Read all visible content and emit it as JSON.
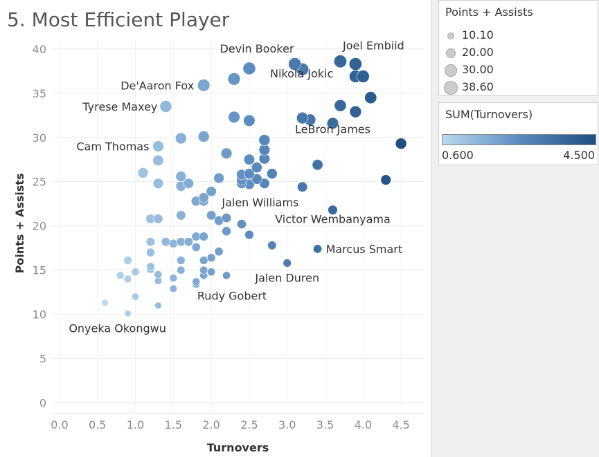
{
  "title": "5. Most Efficient Player",
  "chart_data": {
    "type": "scatter",
    "xlabel": "Turnovers",
    "ylabel": "Points + Assists",
    "xlim": [
      -0.1,
      4.8
    ],
    "ylim": [
      -1.2,
      41
    ],
    "xticks": [
      "0.0",
      "0.5",
      "1.0",
      "1.5",
      "2.0",
      "2.5",
      "3.0",
      "3.5",
      "4.0",
      "4.5"
    ],
    "yticks": [
      "0",
      "5",
      "10",
      "15",
      "20",
      "25",
      "30",
      "35",
      "40"
    ],
    "grid": true,
    "size_encoding": "Points + Assists",
    "color_encoding": "SUM(Turnovers)",
    "points": [
      [
        0.6,
        11.3
      ],
      [
        0.8,
        14.4
      ],
      [
        0.9,
        16.1
      ],
      [
        0.9,
        14.0
      ],
      [
        0.9,
        10.1
      ],
      [
        1.0,
        14.8
      ],
      [
        1.0,
        12.0
      ],
      [
        1.1,
        26.0
      ],
      [
        1.2,
        20.8
      ],
      [
        1.2,
        18.2
      ],
      [
        1.2,
        17.0
      ],
      [
        1.2,
        15.4
      ],
      [
        1.2,
        15.1
      ],
      [
        1.3,
        29.0
      ],
      [
        1.3,
        27.4
      ],
      [
        1.3,
        24.8
      ],
      [
        1.3,
        20.8
      ],
      [
        1.3,
        14.5
      ],
      [
        1.3,
        13.8
      ],
      [
        1.3,
        11.0
      ],
      [
        1.4,
        33.5
      ],
      [
        1.4,
        18.2
      ],
      [
        1.5,
        18.0
      ],
      [
        1.5,
        14.1
      ],
      [
        1.5,
        12.9
      ],
      [
        1.6,
        29.9
      ],
      [
        1.6,
        25.6
      ],
      [
        1.6,
        24.5
      ],
      [
        1.6,
        21.2
      ],
      [
        1.6,
        18.2
      ],
      [
        1.6,
        16.1
      ],
      [
        1.6,
        15.0
      ],
      [
        1.7,
        24.8
      ],
      [
        1.7,
        18.2
      ],
      [
        1.8,
        22.8
      ],
      [
        1.8,
        18.8
      ],
      [
        1.8,
        17.6
      ],
      [
        1.8,
        13.7
      ],
      [
        1.8,
        13.4
      ],
      [
        1.9,
        35.9
      ],
      [
        1.9,
        30.1
      ],
      [
        1.9,
        23.2
      ],
      [
        1.9,
        22.8
      ],
      [
        1.9,
        18.8
      ],
      [
        1.9,
        16.1
      ],
      [
        1.9,
        15.0
      ],
      [
        1.9,
        14.4
      ],
      [
        2.0,
        23.9
      ],
      [
        2.0,
        21.2
      ],
      [
        2.0,
        16.4
      ],
      [
        2.0,
        14.8
      ],
      [
        2.1,
        25.4
      ],
      [
        2.1,
        20.6
      ],
      [
        2.1,
        17.1
      ],
      [
        2.2,
        28.2
      ],
      [
        2.2,
        20.9
      ],
      [
        2.2,
        19.4
      ],
      [
        2.2,
        14.4
      ],
      [
        2.3,
        36.6
      ],
      [
        2.3,
        32.3
      ],
      [
        2.4,
        25.8
      ],
      [
        2.4,
        25.2
      ],
      [
        2.4,
        24.8
      ],
      [
        2.4,
        20.2
      ],
      [
        2.5,
        37.8
      ],
      [
        2.5,
        31.9
      ],
      [
        2.5,
        27.5
      ],
      [
        2.5,
        25.9
      ],
      [
        2.5,
        24.7
      ],
      [
        2.5,
        19.0
      ],
      [
        2.6,
        26.6
      ],
      [
        2.6,
        25.3
      ],
      [
        2.7,
        29.7
      ],
      [
        2.7,
        28.6
      ],
      [
        2.7,
        27.6
      ],
      [
        2.7,
        24.8
      ],
      [
        2.8,
        25.9
      ],
      [
        2.8,
        17.8
      ],
      [
        3.0,
        15.8
      ],
      [
        3.1,
        38.3
      ],
      [
        3.2,
        37.7
      ],
      [
        3.2,
        32.2
      ],
      [
        3.2,
        24.4
      ],
      [
        3.3,
        32.0
      ],
      [
        3.4,
        26.9
      ],
      [
        3.4,
        17.4
      ],
      [
        3.6,
        31.6
      ],
      [
        3.6,
        21.8
      ],
      [
        3.7,
        38.6
      ],
      [
        3.7,
        33.6
      ],
      [
        3.9,
        38.3
      ],
      [
        3.9,
        36.9
      ],
      [
        3.9,
        32.9
      ],
      [
        4.0,
        36.9
      ],
      [
        4.1,
        34.5
      ],
      [
        4.3,
        25.2
      ],
      [
        4.5,
        29.3
      ]
    ],
    "annotations": [
      {
        "text": "Joel Embiid",
        "x": 3.7,
        "y": 38.6
      },
      {
        "text": "Devin Booker",
        "x": 2.5,
        "y": 37.8
      },
      {
        "text": "Nikola Jokic",
        "x": 3.2,
        "y": 37.7
      },
      {
        "text": "De'Aaron Fox",
        "x": 1.9,
        "y": 35.9
      },
      {
        "text": "Tyrese Maxey",
        "x": 1.4,
        "y": 33.5
      },
      {
        "text": "Cam Thomas",
        "x": 1.3,
        "y": 29.0
      },
      {
        "text": "LeBron James",
        "x": 3.6,
        "y": 31.6
      },
      {
        "text": "Jalen Williams",
        "x": 2.7,
        "y": 24.8
      },
      {
        "text": "Victor Wembanyama",
        "x": 3.6,
        "y": 21.8
      },
      {
        "text": "Marcus Smart",
        "x": 3.4,
        "y": 17.4
      },
      {
        "text": "Jalen Duren",
        "x": 3.0,
        "y": 15.8
      },
      {
        "text": "Rudy Gobert",
        "x": 2.2,
        "y": 14.4
      },
      {
        "text": "Onyeka Okongwu",
        "x": 0.9,
        "y": 10.1
      }
    ]
  },
  "legend": {
    "size_title": "Points + Assists",
    "size_items": [
      {
        "label": "10.10",
        "value": 10.1
      },
      {
        "label": "20.00",
        "value": 20.0
      },
      {
        "label": "30.00",
        "value": 30.0
      },
      {
        "label": "38.60",
        "value": 38.6
      }
    ],
    "color_title": "SUM(Turnovers)",
    "color_min": "0.600",
    "color_max": "4.500",
    "colors": {
      "low": "#b8d9f0",
      "mid": "#5b8bbf",
      "high": "#1f4e82",
      "legend_circle": "#cccccc"
    }
  }
}
